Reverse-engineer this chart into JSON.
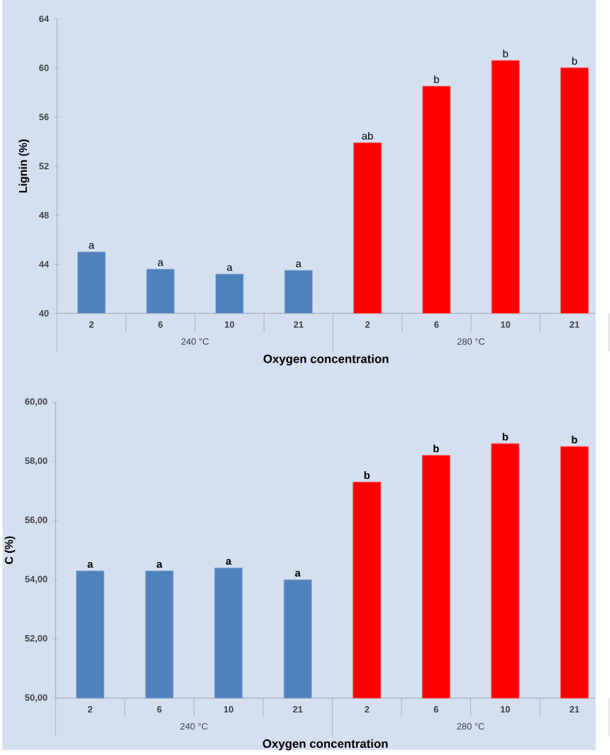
{
  "chart_data": [
    {
      "type": "bar",
      "xlabel": "Oxygen concentration",
      "ylabel": "Lignin (%)",
      "categories": [
        "2",
        "6",
        "10",
        "21",
        "2",
        "6",
        "10",
        "21"
      ],
      "values": [
        45.0,
        43.6,
        43.2,
        43.5,
        53.9,
        58.5,
        60.6,
        60.0
      ],
      "colors": [
        "#4f81bd",
        "#4f81bd",
        "#4f81bd",
        "#4f81bd",
        "#ff0000",
        "#ff0000",
        "#ff0000",
        "#ff0000"
      ],
      "value_labels": [
        "a",
        "a",
        "a",
        "a",
        "ab",
        "b",
        "b",
        "b"
      ],
      "ylim": [
        40,
        64
      ],
      "yticks": [
        40,
        44,
        48,
        52,
        56,
        60,
        64
      ],
      "annotations": [
        "240 °C",
        "280 °C"
      ]
    },
    {
      "type": "bar",
      "xlabel": "Oxygen concentration",
      "ylabel": "C (%)",
      "categories": [
        "2",
        "6",
        "10",
        "21",
        "2",
        "6",
        "10",
        "21"
      ],
      "values": [
        54.3,
        54.3,
        54.4,
        54.0,
        57.3,
        58.2,
        58.6,
        58.5
      ],
      "colors": [
        "#4f81bd",
        "#4f81bd",
        "#4f81bd",
        "#4f81bd",
        "#ff0000",
        "#ff0000",
        "#ff0000",
        "#ff0000"
      ],
      "value_labels": [
        "a",
        "a",
        "a",
        "a",
        "b",
        "b",
        "b",
        "b"
      ],
      "ylim": [
        50,
        60
      ],
      "yticks": [
        {
          "value": 50,
          "label": "50,00"
        },
        {
          "value": 52,
          "label": "52,00"
        },
        {
          "value": 54,
          "label": "54,00"
        },
        {
          "value": 56,
          "label": "56,00"
        },
        {
          "value": 58,
          "label": "58,00"
        },
        {
          "value": 60,
          "label": "60,00"
        }
      ],
      "annotations": [
        "240 °C",
        "280 °C"
      ]
    }
  ]
}
